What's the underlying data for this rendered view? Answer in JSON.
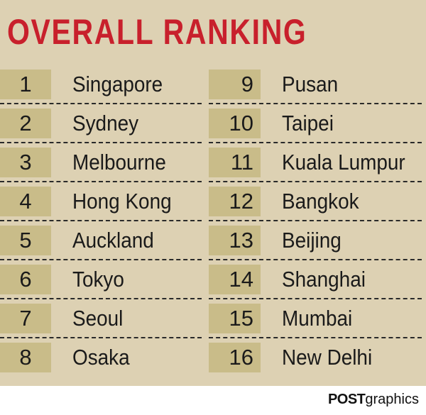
{
  "title": "OVERALL RANKING",
  "left_column": [
    {
      "rank": "1",
      "city": "Singapore"
    },
    {
      "rank": "2",
      "city": "Sydney"
    },
    {
      "rank": "3",
      "city": "Melbourne"
    },
    {
      "rank": "4",
      "city": "Hong Kong"
    },
    {
      "rank": "5",
      "city": "Auckland"
    },
    {
      "rank": "6",
      "city": "Tokyo"
    },
    {
      "rank": "7",
      "city": "Seoul"
    },
    {
      "rank": "8",
      "city": "Osaka"
    }
  ],
  "right_column": [
    {
      "rank": "9",
      "city": "Pusan"
    },
    {
      "rank": "10",
      "city": "Taipei"
    },
    {
      "rank": "11",
      "city": "Kuala Lumpur"
    },
    {
      "rank": "12",
      "city": "Bangkok"
    },
    {
      "rank": "13",
      "city": "Beijing"
    },
    {
      "rank": "14",
      "city": "Shanghai"
    },
    {
      "rank": "15",
      "city": "Mumbai"
    },
    {
      "rank": "16",
      "city": "New Delhi"
    }
  ],
  "credit": {
    "bold": "POST",
    "regular": "graphics"
  },
  "colors": {
    "title": "#c8202c",
    "background": "#ddd1b3",
    "rank_box": "#c9bc89",
    "text": "#1a1a1a"
  }
}
